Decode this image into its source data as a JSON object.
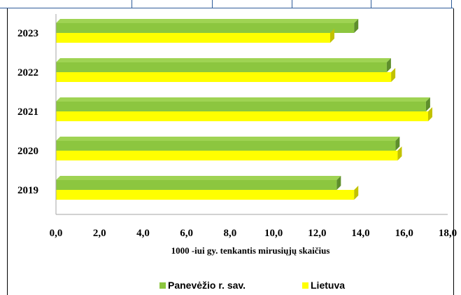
{
  "chart_data": {
    "type": "bar",
    "orientation": "horizontal",
    "categories": [
      "2023",
      "2022",
      "2021",
      "2020",
      "2019"
    ],
    "series": [
      {
        "name": "Panevėžio r. sav.",
        "values": [
          13.7,
          15.2,
          17.0,
          15.6,
          12.9
        ],
        "color": "#8CC63F",
        "top_color": "#9FD353",
        "side_color": "#5E8F2B"
      },
      {
        "name": "Lietuva",
        "values": [
          12.6,
          15.4,
          17.1,
          15.7,
          13.7
        ],
        "color": "#FFFF00",
        "top_color": "#FFFF66",
        "side_color": "#C2C200"
      }
    ],
    "xlabel": "1000 -iui gy. tenkantis mirusiųjų skaičius",
    "xlim": [
      0,
      18
    ],
    "xticks": [
      "0,0",
      "2,0",
      "4,0",
      "6,0",
      "8,0",
      "10,0",
      "12,0",
      "14,0",
      "16,0",
      "18,0"
    ],
    "grid": false,
    "legend_position": "bottom"
  }
}
